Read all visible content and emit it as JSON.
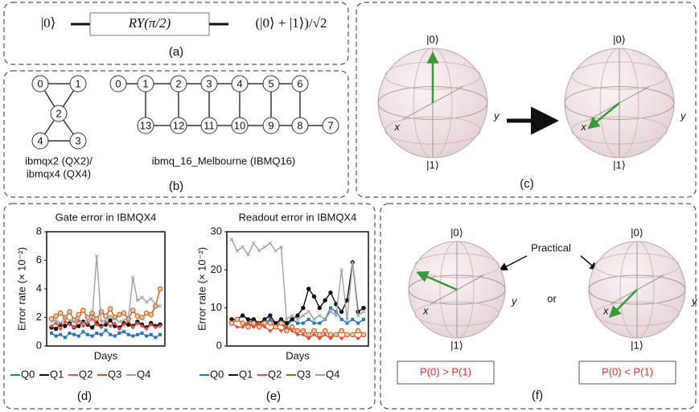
{
  "panel_a": {
    "input": "|0⟩",
    "gate": "RY(π/2)",
    "output": "(|0⟩ + |1⟩)/√2",
    "caption": "(a)"
  },
  "panel_b": {
    "qx_nodes": [
      "0",
      "1",
      "2",
      "3",
      "4"
    ],
    "qx_label": "ibmqx2 (QX2)/",
    "qx_label2": "ibmqx4 (QX4)",
    "melb_nodes": [
      "0",
      "1",
      "2",
      "3",
      "4",
      "5",
      "6",
      "7",
      "8",
      "9",
      "10",
      "11",
      "12",
      "13"
    ],
    "melb_label": "ibmq_16_Melbourne (IBMQ16)",
    "caption": "(b)"
  },
  "bloch_labels": {
    "zero": "|0⟩",
    "one": "|1⟩",
    "x": "x",
    "y": "y"
  },
  "panel_c": {
    "caption": "(c)"
  },
  "panel_f": {
    "annotation": "Practical",
    "connector": "or",
    "left_box": "P(0) > P(1)",
    "right_box": "P(0) < P(1)",
    "caption": "(f)"
  },
  "chart_data": [
    {
      "type": "line",
      "title": "Gate error in IBMQX4",
      "y_label": "Error rate (× 10⁻²)",
      "x_label": "Days",
      "caption": "(d)",
      "categories": [
        null,
        null,
        null,
        null,
        null,
        null,
        null,
        null,
        null,
        null,
        null,
        null,
        null,
        null,
        null,
        null,
        null,
        null,
        null,
        null,
        null,
        null,
        null,
        null,
        null
      ],
      "ylim": [
        0,
        8
      ],
      "yticks": [
        0,
        2,
        4,
        6,
        8
      ],
      "series": [
        {
          "name": "Q0",
          "color": "#2e75b6",
          "values": [
            0.9,
            0.7,
            0.8,
            0.6,
            0.9,
            0.8,
            0.7,
            1.0,
            0.8,
            0.7,
            0.9,
            0.8,
            1.1,
            0.8,
            0.7,
            0.9,
            1.0,
            0.8,
            0.7,
            0.8,
            0.9,
            0.7,
            0.8,
            0.6,
            0.8
          ]
        },
        {
          "name": "Q1",
          "color": "#111111",
          "values": [
            1.3,
            1.2,
            1.5,
            1.4,
            1.6,
            1.3,
            1.4,
            1.7,
            1.5,
            1.3,
            1.6,
            1.4,
            1.5,
            1.8,
            1.4,
            1.3,
            1.6,
            1.5,
            1.4,
            1.7,
            1.5,
            1.3,
            1.6,
            1.4,
            1.5
          ]
        },
        {
          "name": "Q2",
          "color": "#e84c4c",
          "values": [
            1.4,
            1.6,
            1.2,
            1.7,
            1.5,
            1.3,
            1.8,
            1.4,
            1.6,
            1.9,
            1.5,
            1.3,
            1.7,
            1.4,
            1.6,
            1.2,
            1.5,
            1.8,
            1.3,
            1.6,
            1.4,
            1.2,
            1.5,
            1.3,
            1.4
          ]
        },
        {
          "name": "Q3",
          "color": "#c55a11",
          "values": [
            1.9,
            2.1,
            2.3,
            2.0,
            2.4,
            1.8,
            2.2,
            2.5,
            2.0,
            2.3,
            1.9,
            2.4,
            2.1,
            2.6,
            2.0,
            2.2,
            2.3,
            1.9,
            2.5,
            2.1,
            2.0,
            2.3,
            2.2,
            2.8,
            4.0
          ]
        },
        {
          "name": "Q4",
          "color": "#a0a0a0",
          "values": [
            1.7,
            1.8,
            1.6,
            2.0,
            1.8,
            1.7,
            1.9,
            1.6,
            1.8,
            2.0,
            6.3,
            1.7,
            1.8,
            2.1,
            1.9,
            1.7,
            1.8,
            2.0,
            4.8,
            3.2,
            3.4,
            3.1,
            3.3,
            2.9,
            2.8
          ]
        }
      ]
    },
    {
      "type": "line",
      "title": "Readout error in IBMQX4",
      "y_label": "Error rate (× 10⁻²)",
      "x_label": "Days",
      "caption": "(e)",
      "categories": [
        null,
        null,
        null,
        null,
        null,
        null,
        null,
        null,
        null,
        null,
        null,
        null,
        null,
        null,
        null,
        null,
        null,
        null,
        null,
        null,
        null,
        null,
        null,
        null,
        null
      ],
      "ylim": [
        0,
        30
      ],
      "yticks": [
        0,
        10,
        20,
        30
      ],
      "series": [
        {
          "name": "Q0",
          "color": "#2e75b6",
          "values": [
            6,
            7,
            6,
            6,
            7,
            5,
            6,
            7,
            6,
            6,
            5,
            7,
            6,
            6,
            7,
            6,
            6,
            7,
            10,
            9,
            7,
            6,
            7,
            6,
            7
          ]
        },
        {
          "name": "Q1",
          "color": "#111111",
          "values": [
            7,
            7,
            8,
            7,
            7,
            6,
            7,
            8,
            6,
            7,
            6,
            7,
            8,
            10,
            15,
            13,
            10,
            12,
            14,
            11,
            9,
            12,
            22,
            9,
            10
          ]
        },
        {
          "name": "Q2",
          "color": "#e84c4c",
          "values": [
            6,
            5,
            5,
            6,
            5,
            6,
            5,
            4,
            5,
            4,
            5,
            4,
            3,
            3,
            2,
            3,
            2,
            3,
            2,
            3,
            2,
            3,
            3,
            2,
            3
          ]
        },
        {
          "name": "Q3",
          "color": "#c55a11",
          "values": [
            6,
            7,
            6,
            5,
            6,
            5,
            6,
            6,
            5,
            6,
            4,
            5,
            4,
            4,
            3,
            4,
            3,
            4,
            3,
            3,
            4,
            3,
            3,
            4,
            3
          ]
        },
        {
          "name": "Q4",
          "color": "#a0a0a0",
          "values": [
            28,
            25,
            26,
            24,
            27,
            25,
            26,
            27,
            25,
            26,
            7,
            8,
            7,
            8,
            9,
            7,
            8,
            7,
            9,
            8,
            20,
            7,
            22,
            8,
            9
          ]
        }
      ]
    }
  ]
}
